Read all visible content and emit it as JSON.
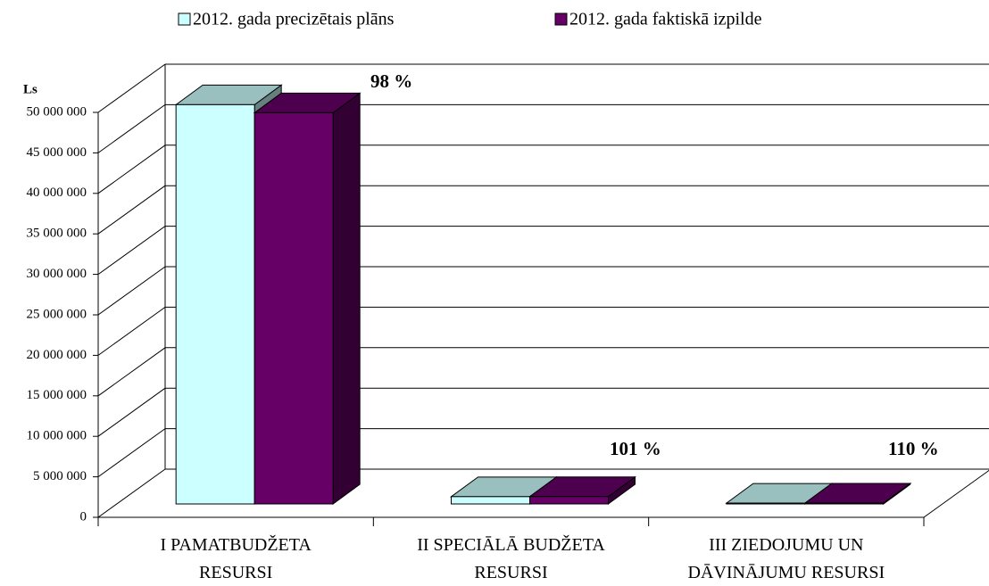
{
  "chart_data": {
    "type": "bar3d",
    "ylabel": "Ls",
    "categories": [
      "I  PAMATBUDŽETA\nRESURSI",
      "II  SPECIĀLĀ BUDŽETA\nRESURSI",
      "III ZIEDOJUMU UN\nDĀVINĀJUMU RESURSI"
    ],
    "series": [
      {
        "name": "2012. gada precizētais plāns",
        "color": "#ccffff",
        "values": [
          49300000,
          900000,
          100000
        ]
      },
      {
        "name": "2012. gada faktiskā izpilde",
        "color": "#660066",
        "values": [
          48300000,
          910000,
          110000
        ]
      }
    ],
    "annotations": [
      "98 %",
      "101 %",
      "110 %"
    ],
    "ylim": [
      0,
      50000000
    ],
    "yticks": [
      0,
      {
        "value": 5000000,
        "label": "5 000 000"
      },
      {
        "value": 10000000,
        "label": "10 000 000"
      },
      {
        "value": 15000000,
        "label": "15 000 000"
      },
      {
        "value": 20000000,
        "label": "20 000 000"
      },
      {
        "value": 25000000,
        "label": "25 000 000"
      },
      {
        "value": 30000000,
        "label": "30 000 000"
      },
      {
        "value": 35000000,
        "label": "35 000 000"
      },
      {
        "value": 40000000,
        "label": "40 000 000"
      },
      {
        "value": 45000000,
        "label": "45 000 000"
      },
      {
        "value": 50000000,
        "label": "50 000 000"
      }
    ],
    "grid": true,
    "legend": "top"
  }
}
